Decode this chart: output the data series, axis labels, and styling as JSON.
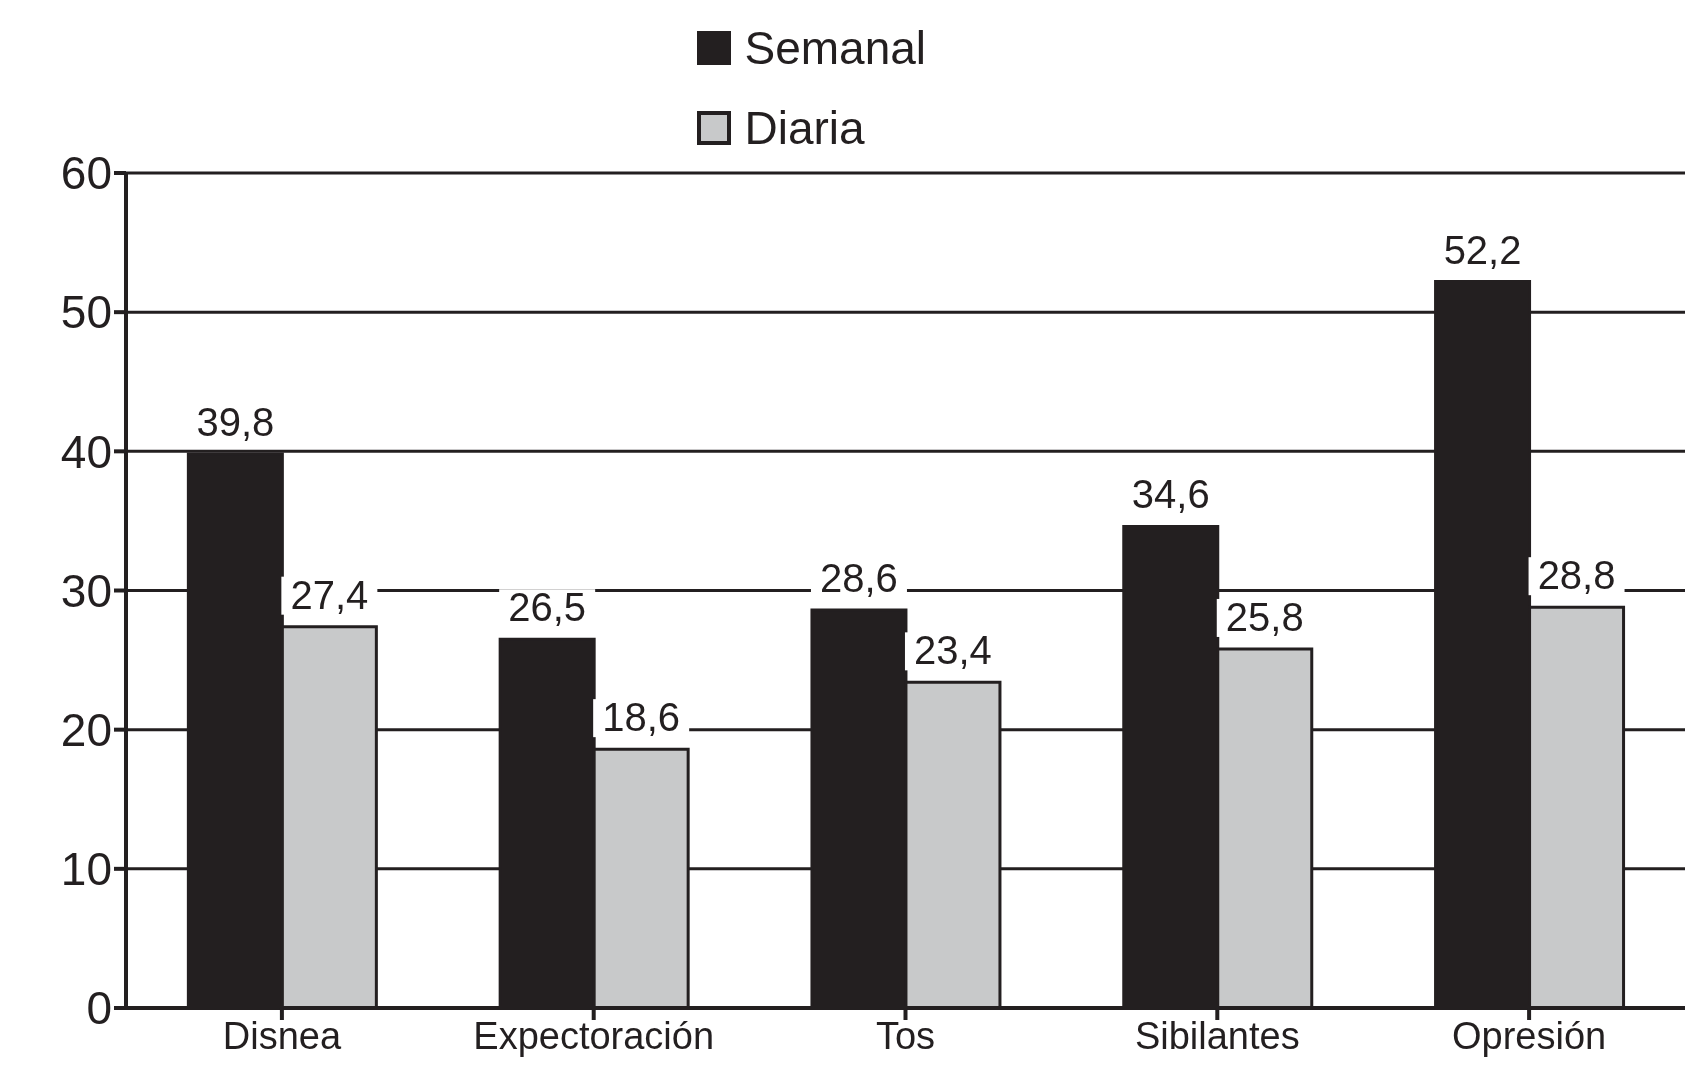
{
  "chart_data": {
    "type": "bar",
    "categories": [
      "Disnea",
      "Expectoración",
      "Tos",
      "Sibilantes",
      "Opresión"
    ],
    "series": [
      {
        "name": "Semanal",
        "color": "#231f20",
        "values": [
          39.8,
          26.5,
          28.6,
          34.6,
          52.2
        ],
        "value_labels": [
          "39,8",
          "26,5",
          "28,6",
          "34,6",
          "52,2"
        ]
      },
      {
        "name": "Diaria",
        "color": "#c8c9ca",
        "values": [
          27.4,
          18.6,
          23.4,
          25.8,
          28.8
        ],
        "value_labels": [
          "27,4",
          "18,6",
          "23,4",
          "25,8",
          "28,8"
        ]
      }
    ],
    "ylim": [
      0,
      60
    ],
    "yticks": [
      0,
      10,
      20,
      30,
      40,
      50,
      60
    ],
    "grid": "y",
    "legend": "top"
  }
}
